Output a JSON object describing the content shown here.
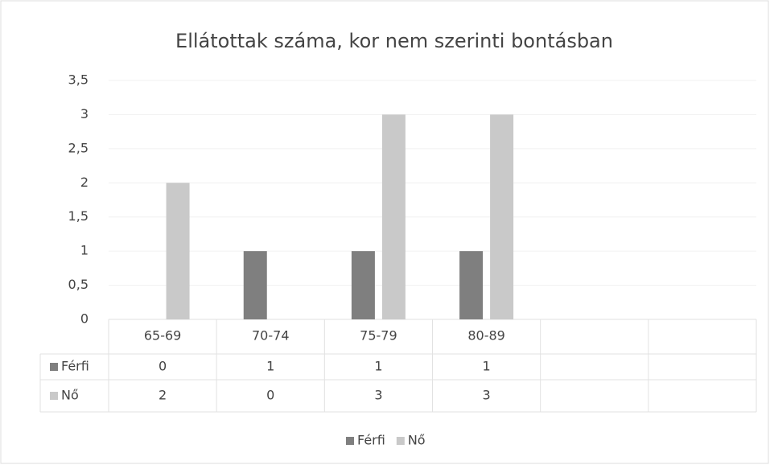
{
  "chart_data": {
    "type": "bar",
    "title": "Ellátottak száma, kor nem szerinti bontásban",
    "categories": [
      "65-69",
      "70-74",
      "75-79",
      "80-89",
      null,
      null
    ],
    "series": [
      {
        "name": "Férfi",
        "color": "#7f7f7f",
        "values": [
          0,
          1,
          1,
          1,
          null,
          null
        ]
      },
      {
        "name": "Nő",
        "color": "#c9c9c9",
        "values": [
          2,
          0,
          3,
          3,
          null,
          null
        ]
      }
    ],
    "ylim": [
      0,
      3.5
    ],
    "yticks": [
      0,
      {
        "value": 0.5,
        "label": "0,5"
      },
      1,
      {
        "value": 1.5,
        "label": "1,5"
      },
      2,
      {
        "value": 2.5,
        "label": "2,5"
      },
      3,
      {
        "value": 3.5,
        "label": "3,5"
      }
    ],
    "grid": true,
    "legend": "bottom",
    "data_table": true
  }
}
